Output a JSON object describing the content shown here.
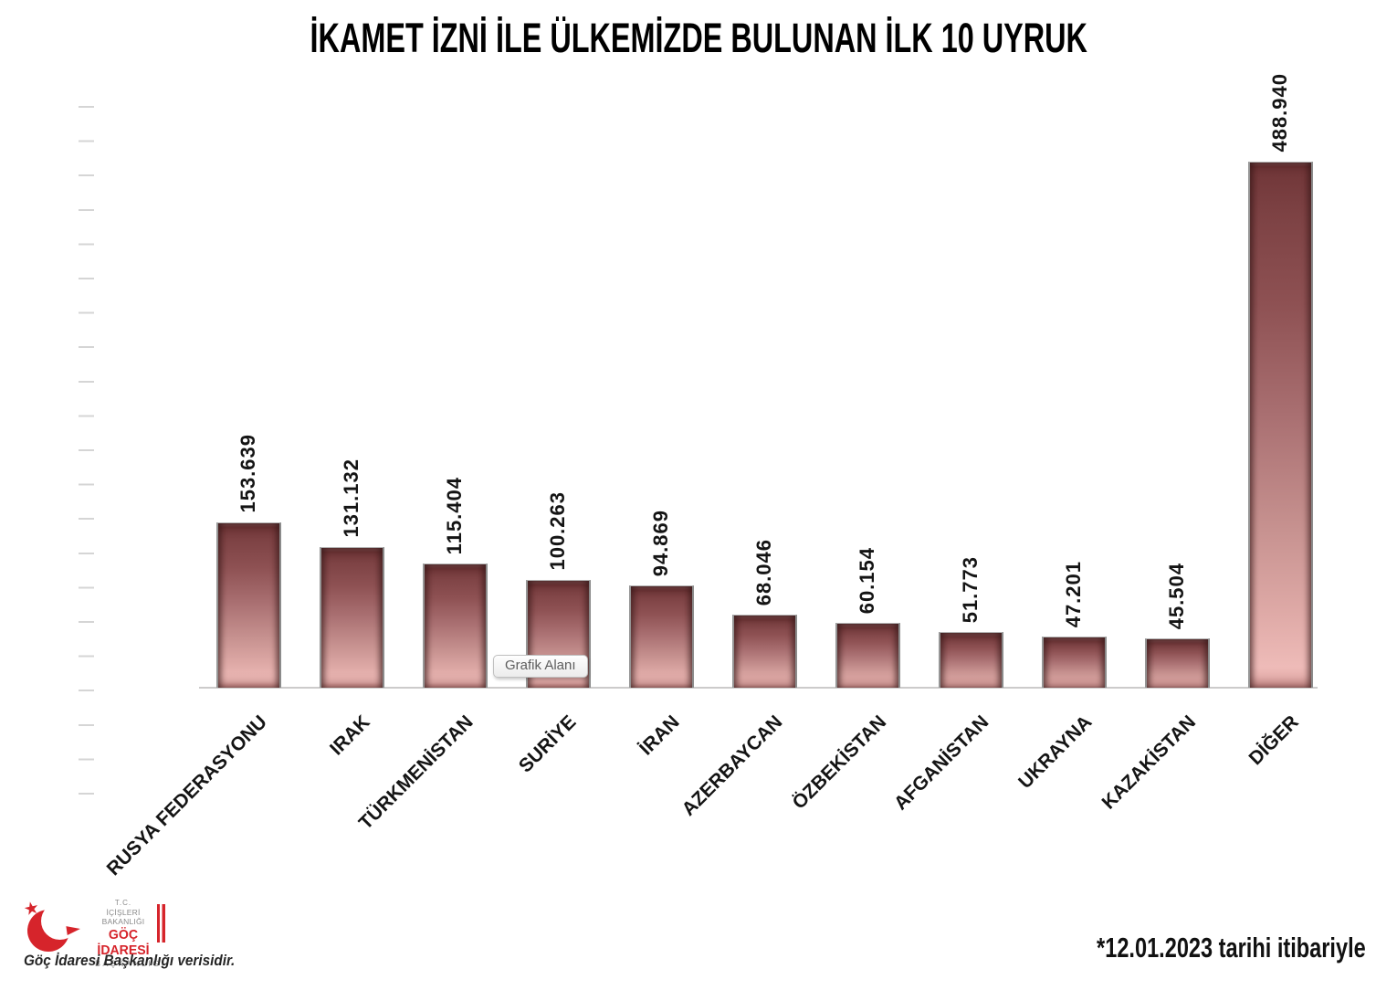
{
  "title": {
    "text": "İKAMET İZNİ İLE ÜLKEMİZDE BULUNAN İLK 10 UYRUK",
    "color": "#b02a30"
  },
  "chart_data": {
    "type": "bar",
    "title": "İKAMET İZNİ İLE ÜLKEMİZDE BULUNAN İLK 10 UYRUK",
    "categories": [
      "RUSYA FEDERASYONU",
      "IRAK",
      "TÜRKMENİSTAN",
      "SURİYE",
      "İRAN",
      "AZERBAYCAN",
      "ÖZBEKİSTAN",
      "AFGANİSTAN",
      "UKRAYNA",
      "KAZAKİSTAN",
      "DİĞER"
    ],
    "values": [
      153639,
      131132,
      115404,
      100263,
      94869,
      68046,
      60154,
      51773,
      47201,
      45504,
      488940
    ],
    "value_labels": [
      "153.639",
      "131.132",
      "115.404",
      "100.263",
      "94.869",
      "68.046",
      "60.154",
      "51.773",
      "47.201",
      "45.504",
      "488.940"
    ],
    "xlabel": "",
    "ylabel": "",
    "ylim": [
      0,
      540000
    ],
    "grid": false,
    "legend": null,
    "bar_color_top": "#6e3435",
    "bar_color_bottom": "#eebbb8"
  },
  "tooltip": {
    "text": "Grafik Alanı"
  },
  "logo": {
    "line1": "T.C.",
    "line2": "İÇİŞLERİ BAKANLIĞI",
    "line3": "GÖÇ İDARESİ",
    "line4": "BAŞKANLIĞI",
    "brand_red": "#d6242b"
  },
  "footer": {
    "source": "Göç İdaresi Başkanlığı verisidir.",
    "note": "*12.01.2023 tarihi itibariyle"
  }
}
